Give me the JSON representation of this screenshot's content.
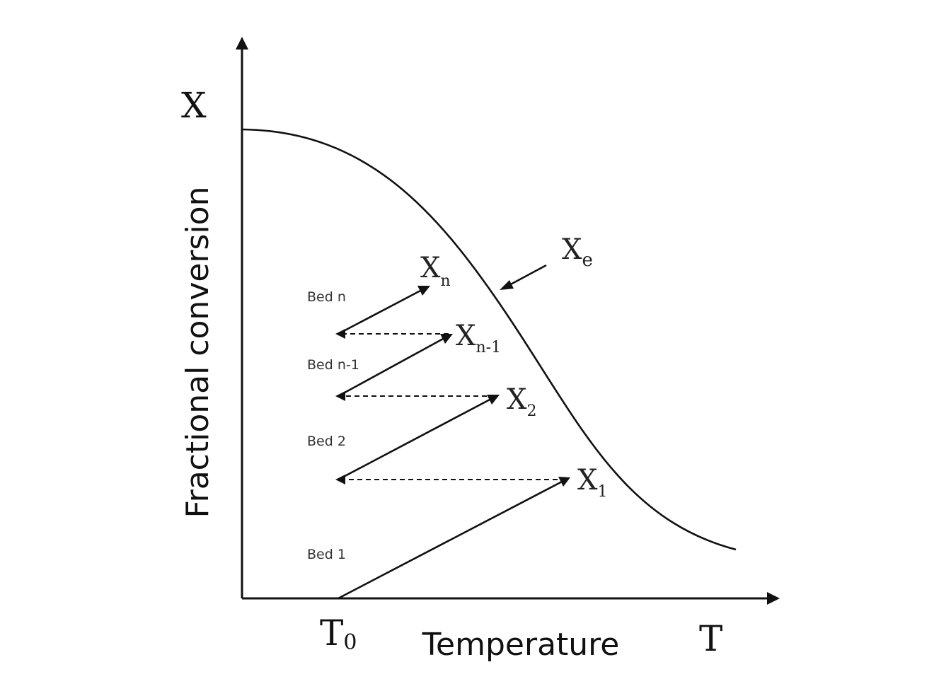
{
  "axes": {
    "y_symbol": "X",
    "y_title": "Fractional conversion",
    "x_title": "Temperature",
    "x_start": "T",
    "x_start_sub": "0",
    "x_end": "T"
  },
  "equilibrium": {
    "letter": "X",
    "sub": "e"
  },
  "points": [
    {
      "id": "x1",
      "letter": "X",
      "sub": "1"
    },
    {
      "id": "x2",
      "letter": "X",
      "sub": "2"
    },
    {
      "id": "xn-1",
      "letter": "X",
      "sub": "n-1"
    },
    {
      "id": "xn",
      "letter": "X",
      "sub": "n"
    }
  ],
  "beds": [
    {
      "label": "Bed 1"
    },
    {
      "label": "Bed 2"
    },
    {
      "label": "Bed n-1"
    },
    {
      "label": "Bed n"
    }
  ]
}
